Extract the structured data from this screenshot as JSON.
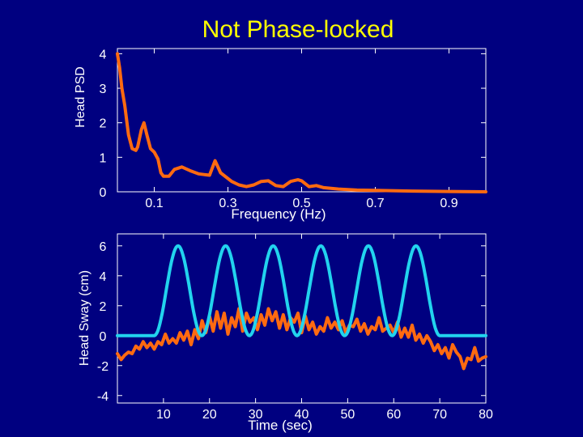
{
  "title": "Not Phase-locked",
  "colors": {
    "background": "#000080",
    "head_psd": "#ff6a10",
    "head_sway": "#ff6a10",
    "stimulus": "#22d3ee",
    "text": "#ffffff",
    "title": "#ffff00"
  },
  "chart_data": [
    {
      "type": "line",
      "title": "",
      "xlabel": "Frequency (Hz)",
      "ylabel": "Head PSD",
      "xlim": [
        0,
        1.0
      ],
      "ylim": [
        0,
        4.15
      ],
      "x_ticks": [
        0.1,
        0.3,
        0.5,
        0.7,
        0.9
      ],
      "x_tick_labels": [
        "0.1",
        "0.3",
        "0.5",
        "0.7",
        "0.9"
      ],
      "y_ticks": [
        0,
        1,
        2,
        3,
        4
      ],
      "y_tick_labels": [
        "0",
        "1",
        "2",
        "3",
        "4"
      ],
      "series": [
        {
          "color": "#ff6a10",
          "x": [
            0,
            0.006,
            0.012,
            0.02,
            0.03,
            0.04,
            0.05,
            0.055,
            0.065,
            0.072,
            0.08,
            0.09,
            0.1,
            0.11,
            0.118,
            0.125,
            0.14,
            0.155,
            0.175,
            0.2,
            0.22,
            0.235,
            0.25,
            0.265,
            0.28,
            0.31,
            0.33,
            0.35,
            0.37,
            0.39,
            0.41,
            0.43,
            0.45,
            0.47,
            0.49,
            0.5,
            0.52,
            0.54,
            0.56,
            0.6,
            0.65,
            0.7,
            0.8,
            0.9,
            1.0
          ],
          "y": [
            4.0,
            3.6,
            3.0,
            2.5,
            1.65,
            1.25,
            1.2,
            1.3,
            1.8,
            2.0,
            1.65,
            1.25,
            1.15,
            0.95,
            0.55,
            0.45,
            0.45,
            0.65,
            0.72,
            0.6,
            0.52,
            0.5,
            0.48,
            0.9,
            0.55,
            0.3,
            0.2,
            0.15,
            0.2,
            0.3,
            0.32,
            0.18,
            0.15,
            0.3,
            0.35,
            0.32,
            0.15,
            0.18,
            0.12,
            0.08,
            0.05,
            0.04,
            0.02,
            0.01,
            0.0
          ]
        }
      ]
    },
    {
      "type": "line",
      "title": "",
      "xlabel": "Time (sec)",
      "ylabel": "Head Sway (cm)",
      "xlim": [
        0,
        80
      ],
      "ylim": [
        -4.5,
        6.8
      ],
      "x_ticks": [
        10,
        20,
        30,
        40,
        50,
        60,
        70,
        80
      ],
      "x_tick_labels": [
        "10",
        "20",
        "30",
        "40",
        "50",
        "60",
        "70",
        "80"
      ],
      "y_ticks": [
        -4,
        -2,
        0,
        2,
        4,
        6
      ],
      "y_tick_labels": [
        "-4",
        "-2",
        "0",
        "2",
        "4",
        "6"
      ],
      "series": [
        {
          "color": "#ff6a10",
          "x": [
            0,
            0.8,
            1.6,
            2.4,
            3.2,
            4,
            4.8,
            5.6,
            6.4,
            7.2,
            8,
            8.8,
            9.6,
            10.4,
            11.2,
            12,
            12.8,
            13.6,
            14.4,
            15.2,
            16,
            16.8,
            17.6,
            18.4,
            19.2,
            20,
            20.8,
            21.6,
            22.4,
            23.2,
            24,
            24.8,
            25.6,
            26.4,
            27.2,
            28,
            28.8,
            29.6,
            30.4,
            31.2,
            32,
            32.8,
            33.6,
            34.4,
            35.2,
            36,
            36.8,
            37.6,
            38.4,
            39.2,
            40,
            40.8,
            41.6,
            42.4,
            43.2,
            44,
            44.8,
            45.6,
            46.4,
            47.2,
            48,
            48.8,
            49.6,
            50.4,
            51.2,
            52,
            52.8,
            53.6,
            54.4,
            55.2,
            56,
            56.8,
            57.6,
            58.4,
            59.2,
            60,
            60.8,
            61.6,
            62.4,
            63.2,
            64,
            64.8,
            65.6,
            66.4,
            67.2,
            68,
            68.8,
            69.6,
            70.4,
            71.2,
            72,
            72.8,
            73.6,
            74.4,
            75.2,
            76,
            76.8,
            77.6,
            78.4,
            79.2,
            80
          ],
          "y": [
            -1.2,
            -1.6,
            -1.3,
            -1.1,
            -1.2,
            -0.7,
            -0.9,
            -0.4,
            -0.8,
            -0.5,
            -0.9,
            -0.4,
            -0.6,
            0.1,
            -0.5,
            -0.2,
            -0.5,
            0.2,
            -0.3,
            0.3,
            -0.6,
            0.4,
            -0.2,
            1.0,
            0.2,
            1.3,
            0.3,
            1.6,
            0.5,
            1.5,
            0.1,
            1.2,
            0.6,
            1.8,
            0.3,
            1.5,
            0.9,
            1.2,
            0.4,
            1.4,
            0.7,
            1.8,
            1.0,
            1.6,
            0.5,
            1.4,
            0.4,
            1.2,
            0.9,
            1.5,
            0.2,
            1.3,
            0.4,
            0.9,
            0.1,
            0.6,
            0.3,
            1.2,
            0.5,
            0.9,
            0.4,
            1.0,
            0.2,
            0.7,
            0.6,
            1.1,
            0.3,
            0.8,
            0.1,
            0.6,
            0.4,
            1.2,
            0.3,
            0.5,
            0.7,
            0.2,
            0.9,
            -0.1,
            0.5,
            -0.1,
            0.7,
            -0.3,
            0.1,
            -0.5,
            0.0,
            -0.4,
            -1.0,
            -0.6,
            -1.2,
            -0.8,
            -1.5,
            -0.6,
            -1.1,
            -1.4,
            -2.2,
            -1.5,
            -1.6,
            -0.8,
            -1.7,
            -1.5,
            -1.4
          ]
        },
        {
          "color": "#22d3ee",
          "stimulus": {
            "baseline": 0,
            "peak": 6,
            "trough": 0,
            "start": 8,
            "end": 70,
            "cycles": 6
          }
        }
      ]
    }
  ]
}
